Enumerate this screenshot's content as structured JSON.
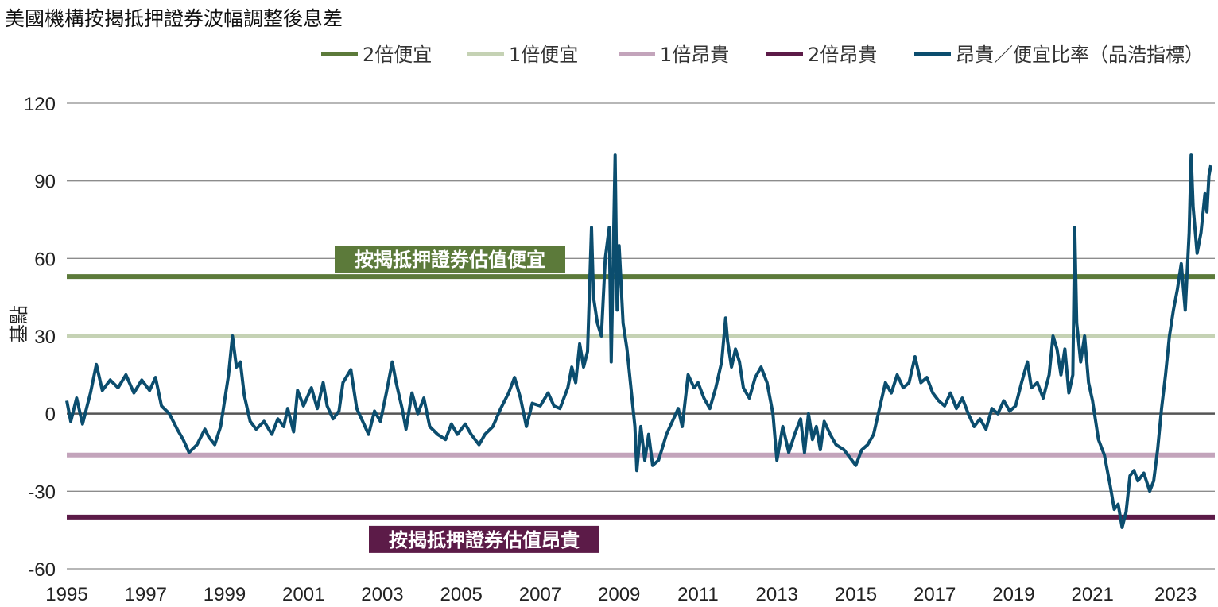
{
  "chart_data": {
    "type": "line",
    "title": "美國機構按揭抵押證券波幅調整後息差",
    "ylabel": "基點",
    "xlabel": "",
    "xlim": [
      1995,
      2024.1
    ],
    "ylim": [
      -60,
      120
    ],
    "yticks": [
      120,
      90,
      60,
      30,
      0,
      -30,
      -60
    ],
    "xticks": [
      1995,
      1997,
      1999,
      2001,
      2003,
      2005,
      2007,
      2009,
      2011,
      2013,
      2015,
      2017,
      2019,
      2021,
      2023
    ],
    "grid": true,
    "legend_position": "top",
    "reference_lines": [
      {
        "name": "2倍便宜",
        "value": 53,
        "color": "#5c7a3a"
      },
      {
        "name": "1倍便宜",
        "value": 30,
        "color": "#c5d2b4"
      },
      {
        "name": "1倍昂貴",
        "value": -16,
        "color": "#c3a4bb"
      },
      {
        "name": "2倍昂貴",
        "value": -40,
        "color": "#5c1b48"
      }
    ],
    "series": [
      {
        "name": "昂貴／便宜比率（品浩指標）",
        "color": "#0b4d6e",
        "points": [
          [
            1995.0,
            5
          ],
          [
            1995.1,
            -3
          ],
          [
            1995.25,
            6
          ],
          [
            1995.4,
            -4
          ],
          [
            1995.6,
            8
          ],
          [
            1995.75,
            19
          ],
          [
            1995.9,
            9
          ],
          [
            1996.1,
            13
          ],
          [
            1996.3,
            10
          ],
          [
            1996.5,
            15
          ],
          [
            1996.7,
            8
          ],
          [
            1996.9,
            13
          ],
          [
            1997.1,
            9
          ],
          [
            1997.25,
            14
          ],
          [
            1997.4,
            3
          ],
          [
            1997.6,
            0
          ],
          [
            1997.8,
            -6
          ],
          [
            1997.95,
            -10
          ],
          [
            1998.1,
            -15
          ],
          [
            1998.3,
            -12
          ],
          [
            1998.5,
            -6
          ],
          [
            1998.6,
            -9
          ],
          [
            1998.75,
            -12
          ],
          [
            1998.9,
            -5
          ],
          [
            1999.0,
            5
          ],
          [
            1999.1,
            15
          ],
          [
            1999.2,
            30
          ],
          [
            1999.3,
            18
          ],
          [
            1999.4,
            20
          ],
          [
            1999.5,
            7
          ],
          [
            1999.65,
            -3
          ],
          [
            1999.8,
            -6
          ],
          [
            2000.0,
            -3
          ],
          [
            2000.2,
            -8
          ],
          [
            2000.35,
            -2
          ],
          [
            2000.5,
            -5
          ],
          [
            2000.6,
            2
          ],
          [
            2000.75,
            -7
          ],
          [
            2000.85,
            9
          ],
          [
            2001.0,
            3
          ],
          [
            2001.2,
            10
          ],
          [
            2001.35,
            2
          ],
          [
            2001.5,
            12
          ],
          [
            2001.6,
            3
          ],
          [
            2001.75,
            -2
          ],
          [
            2001.9,
            1
          ],
          [
            2002.0,
            12
          ],
          [
            2002.2,
            17
          ],
          [
            2002.35,
            2
          ],
          [
            2002.5,
            -3
          ],
          [
            2002.65,
            -8
          ],
          [
            2002.8,
            1
          ],
          [
            2002.95,
            -3
          ],
          [
            2003.1,
            8
          ],
          [
            2003.25,
            20
          ],
          [
            2003.35,
            12
          ],
          [
            2003.5,
            2
          ],
          [
            2003.6,
            -6
          ],
          [
            2003.75,
            8
          ],
          [
            2003.9,
            0
          ],
          [
            2004.05,
            6
          ],
          [
            2004.2,
            -5
          ],
          [
            2004.4,
            -8
          ],
          [
            2004.6,
            -10
          ],
          [
            2004.75,
            -4
          ],
          [
            2004.9,
            -8
          ],
          [
            2005.1,
            -4
          ],
          [
            2005.25,
            -8
          ],
          [
            2005.45,
            -12
          ],
          [
            2005.6,
            -8
          ],
          [
            2005.8,
            -5
          ],
          [
            2006.0,
            2
          ],
          [
            2006.2,
            8
          ],
          [
            2006.35,
            14
          ],
          [
            2006.5,
            6
          ],
          [
            2006.65,
            -5
          ],
          [
            2006.8,
            4
          ],
          [
            2007.0,
            3
          ],
          [
            2007.2,
            8
          ],
          [
            2007.35,
            3
          ],
          [
            2007.5,
            2
          ],
          [
            2007.7,
            10
          ],
          [
            2007.8,
            18
          ],
          [
            2007.9,
            12
          ],
          [
            2008.0,
            27
          ],
          [
            2008.1,
            18
          ],
          [
            2008.2,
            24
          ],
          [
            2008.3,
            72
          ],
          [
            2008.35,
            45
          ],
          [
            2008.45,
            35
          ],
          [
            2008.55,
            30
          ],
          [
            2008.65,
            60
          ],
          [
            2008.75,
            72
          ],
          [
            2008.8,
            20
          ],
          [
            2008.85,
            60
          ],
          [
            2008.9,
            100
          ],
          [
            2008.95,
            40
          ],
          [
            2009.0,
            65
          ],
          [
            2009.1,
            35
          ],
          [
            2009.2,
            25
          ],
          [
            2009.3,
            10
          ],
          [
            2009.4,
            -5
          ],
          [
            2009.45,
            -22
          ],
          [
            2009.55,
            -5
          ],
          [
            2009.65,
            -18
          ],
          [
            2009.75,
            -8
          ],
          [
            2009.85,
            -20
          ],
          [
            2010.0,
            -18
          ],
          [
            2010.2,
            -8
          ],
          [
            2010.35,
            -3
          ],
          [
            2010.5,
            2
          ],
          [
            2010.6,
            -5
          ],
          [
            2010.75,
            15
          ],
          [
            2010.9,
            10
          ],
          [
            2011.0,
            12
          ],
          [
            2011.15,
            6
          ],
          [
            2011.3,
            2
          ],
          [
            2011.45,
            10
          ],
          [
            2011.6,
            20
          ],
          [
            2011.7,
            37
          ],
          [
            2011.75,
            28
          ],
          [
            2011.85,
            18
          ],
          [
            2011.95,
            25
          ],
          [
            2012.05,
            20
          ],
          [
            2012.15,
            10
          ],
          [
            2012.3,
            6
          ],
          [
            2012.45,
            14
          ],
          [
            2012.6,
            18
          ],
          [
            2012.75,
            12
          ],
          [
            2012.9,
            0
          ],
          [
            2013.0,
            -18
          ],
          [
            2013.15,
            -5
          ],
          [
            2013.3,
            -15
          ],
          [
            2013.45,
            -8
          ],
          [
            2013.6,
            -2
          ],
          [
            2013.7,
            -15
          ],
          [
            2013.8,
            0
          ],
          [
            2013.9,
            -10
          ],
          [
            2014.0,
            -5
          ],
          [
            2014.1,
            -14
          ],
          [
            2014.2,
            -3
          ],
          [
            2014.35,
            -8
          ],
          [
            2014.5,
            -12
          ],
          [
            2014.7,
            -14
          ],
          [
            2014.85,
            -17
          ],
          [
            2015.0,
            -20
          ],
          [
            2015.15,
            -14
          ],
          [
            2015.3,
            -12
          ],
          [
            2015.45,
            -8
          ],
          [
            2015.6,
            2
          ],
          [
            2015.75,
            12
          ],
          [
            2015.9,
            8
          ],
          [
            2016.05,
            15
          ],
          [
            2016.2,
            10
          ],
          [
            2016.35,
            12
          ],
          [
            2016.5,
            22
          ],
          [
            2016.65,
            12
          ],
          [
            2016.8,
            14
          ],
          [
            2016.95,
            8
          ],
          [
            2017.1,
            5
          ],
          [
            2017.25,
            3
          ],
          [
            2017.4,
            8
          ],
          [
            2017.55,
            2
          ],
          [
            2017.7,
            6
          ],
          [
            2017.85,
            0
          ],
          [
            2018.0,
            -5
          ],
          [
            2018.15,
            -2
          ],
          [
            2018.3,
            -6
          ],
          [
            2018.45,
            2
          ],
          [
            2018.6,
            0
          ],
          [
            2018.75,
            5
          ],
          [
            2018.9,
            1
          ],
          [
            2019.05,
            3
          ],
          [
            2019.2,
            12
          ],
          [
            2019.35,
            20
          ],
          [
            2019.45,
            10
          ],
          [
            2019.6,
            12
          ],
          [
            2019.75,
            6
          ],
          [
            2019.9,
            15
          ],
          [
            2020.0,
            30
          ],
          [
            2020.1,
            25
          ],
          [
            2020.2,
            15
          ],
          [
            2020.3,
            25
          ],
          [
            2020.4,
            8
          ],
          [
            2020.5,
            15
          ],
          [
            2020.55,
            72
          ],
          [
            2020.6,
            35
          ],
          [
            2020.7,
            20
          ],
          [
            2020.8,
            30
          ],
          [
            2020.9,
            12
          ],
          [
            2021.0,
            5
          ],
          [
            2021.15,
            -10
          ],
          [
            2021.3,
            -16
          ],
          [
            2021.45,
            -28
          ],
          [
            2021.55,
            -37
          ],
          [
            2021.65,
            -35
          ],
          [
            2021.75,
            -44
          ],
          [
            2021.85,
            -38
          ],
          [
            2021.95,
            -24
          ],
          [
            2022.05,
            -22
          ],
          [
            2022.15,
            -26
          ],
          [
            2022.3,
            -23
          ],
          [
            2022.45,
            -30
          ],
          [
            2022.55,
            -26
          ],
          [
            2022.65,
            -14
          ],
          [
            2022.75,
            2
          ],
          [
            2022.85,
            15
          ],
          [
            2022.95,
            30
          ],
          [
            2023.05,
            40
          ],
          [
            2023.15,
            48
          ],
          [
            2023.25,
            58
          ],
          [
            2023.35,
            40
          ],
          [
            2023.45,
            70
          ],
          [
            2023.5,
            100
          ],
          [
            2023.55,
            80
          ],
          [
            2023.65,
            62
          ],
          [
            2023.75,
            70
          ],
          [
            2023.85,
            85
          ],
          [
            2023.9,
            78
          ],
          [
            2023.95,
            92
          ],
          [
            2024.0,
            96
          ]
        ]
      }
    ],
    "annotations": [
      {
        "text": "按揭抵押證券估值便宜",
        "color": "#5c7a3a"
      },
      {
        "text": "按揭抵押證券估值昂貴",
        "color": "#5c1b48"
      }
    ],
    "legend": [
      {
        "label": "2倍便宜",
        "color": "#5c7a3a"
      },
      {
        "label": "1倍便宜",
        "color": "#c5d2b4"
      },
      {
        "label": "1倍昂貴",
        "color": "#c3a4bb"
      },
      {
        "label": "2倍昂貴",
        "color": "#5c1b48"
      },
      {
        "label": "昂貴／便宜比率（品浩指標）",
        "color": "#0b4d6e"
      }
    ]
  }
}
